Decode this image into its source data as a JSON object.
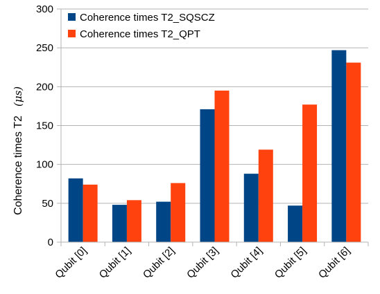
{
  "chart_data": {
    "type": "bar",
    "title": "",
    "xlabel": "",
    "ylabel": "Coherence times T2",
    "ylabel_unit": "(μs)",
    "ylim": [
      0,
      300
    ],
    "yticks": [
      0,
      50,
      100,
      150,
      200,
      250,
      300
    ],
    "grid": true,
    "legend_position": "top-left",
    "categories": [
      "Qubit [0]",
      "Qubit [1]",
      "Qubit [2]",
      "Qubit [3]",
      "Qubit [4]",
      "Qubit [5]",
      "Qubit [6]"
    ],
    "series": [
      {
        "name": "Coherence times T2_SQSCZ",
        "color": "#004586",
        "values": [
          82,
          48,
          52,
          171,
          88,
          47,
          247
        ]
      },
      {
        "name": "Coherence times T2_QPT",
        "color": "#ff420e",
        "values": [
          74,
          54,
          76,
          195,
          119,
          177,
          231
        ]
      }
    ]
  }
}
